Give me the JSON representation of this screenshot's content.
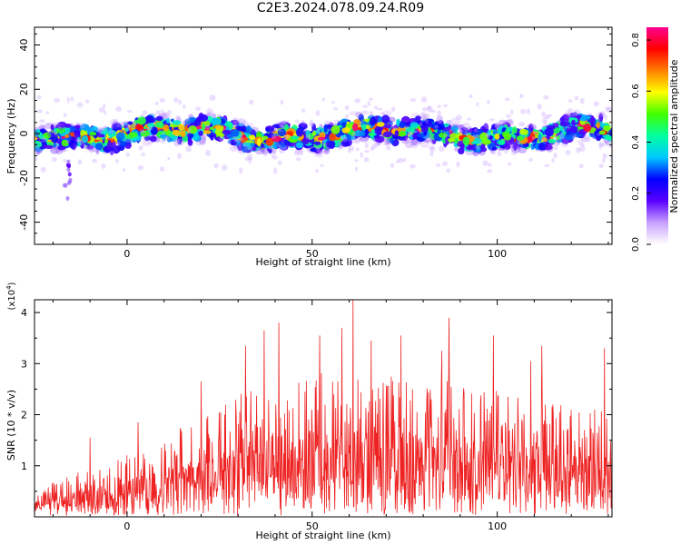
{
  "figure": {
    "title": "C2E3.2024.078.09.24.R09"
  },
  "chart_data": [
    {
      "type": "heatmap",
      "xlabel": "Height of straight line (km)",
      "ylabel": "Frequency (Hz)",
      "xlim": [
        -25,
        131
      ],
      "ylim": [
        -50,
        48
      ],
      "xticks": [
        0,
        50,
        100
      ],
      "yticks": [
        -40,
        -20,
        0,
        20,
        40
      ],
      "ridge_frequency_hz": 0,
      "ridge_half_width_hz": 6,
      "colorbar": {
        "label": "Normalized spectral amplitude",
        "range": [
          0.0,
          0.85
        ],
        "ticks": [
          "0.0",
          "0.2",
          "0.4",
          "0.6",
          "0.8"
        ],
        "tick_values": [
          0.0,
          0.2,
          0.4,
          0.6,
          0.8
        ],
        "colormap": [
          "#ffffff",
          "#c8a0ff",
          "#5a00ff",
          "#0000ff",
          "#00c8ff",
          "#00ffa0",
          "#40ff00",
          "#ffff00",
          "#ff8000",
          "#ff0000",
          "#ff0090"
        ]
      },
      "grid": false
    },
    {
      "type": "line",
      "xlabel": "Height of straight line (km)",
      "ylabel": "SNR (10 * v/v)",
      "yscale_label": "(x10",
      "yscale_exp": "4",
      "yscale_close": ")",
      "xlim": [
        -25,
        131
      ],
      "ylim": [
        0,
        4.25
      ],
      "xticks": [
        0,
        50,
        100
      ],
      "yticks": [
        1,
        2,
        3,
        4
      ],
      "line_color": "#ee2222",
      "envelope": [
        [
          -25,
          0.5
        ],
        [
          -15,
          0.8
        ],
        [
          0,
          1.2
        ],
        [
          10,
          1.5
        ],
        [
          20,
          2.0
        ],
        [
          30,
          2.4
        ],
        [
          40,
          2.6
        ],
        [
          50,
          2.8
        ],
        [
          60,
          2.9
        ],
        [
          70,
          2.8
        ],
        [
          80,
          2.7
        ],
        [
          90,
          2.6
        ],
        [
          100,
          2.5
        ],
        [
          110,
          2.3
        ],
        [
          120,
          2.2
        ],
        [
          131,
          2.0
        ]
      ],
      "peaks": [
        [
          -10,
          1.55
        ],
        [
          3,
          1.85
        ],
        [
          20,
          2.65
        ],
        [
          32,
          3.35
        ],
        [
          37,
          3.65
        ],
        [
          41,
          3.8
        ],
        [
          52,
          3.55
        ],
        [
          58,
          3.7
        ],
        [
          61,
          4.25
        ],
        [
          66,
          3.45
        ],
        [
          74,
          3.55
        ],
        [
          85,
          3.25
        ],
        [
          87,
          3.9
        ],
        [
          99,
          3.55
        ],
        [
          109,
          3.05
        ],
        [
          112,
          3.35
        ],
        [
          129,
          3.3
        ]
      ],
      "grid": false
    }
  ]
}
